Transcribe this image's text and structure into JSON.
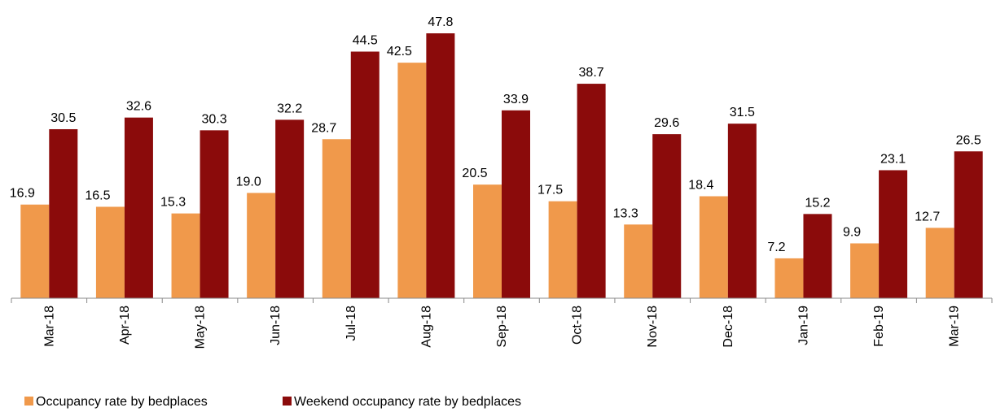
{
  "chart_data": {
    "type": "bar",
    "categories": [
      "Mar-18",
      "Apr-18",
      "May-18",
      "Jun-18",
      "Jul-18",
      "Aug-18",
      "Sep-18",
      "Oct-18",
      "Nov-18",
      "Dec-18",
      "Jan-19",
      "Feb-19",
      "Mar-19"
    ],
    "series": [
      {
        "name": "Occupancy rate by bedplaces",
        "color": "#f0994b",
        "values": [
          16.9,
          16.5,
          15.3,
          19.0,
          28.7,
          42.5,
          20.5,
          17.5,
          13.3,
          18.4,
          7.2,
          9.9,
          12.7
        ],
        "value_labels": [
          "16.9",
          "16.5",
          "15.3",
          "19.0",
          "28.7",
          "42.5",
          "20.5",
          "17.5",
          "13.3",
          "18.4",
          "7.2",
          "9.9",
          "12.7"
        ]
      },
      {
        "name": "Weekend occupancy rate by bedplaces",
        "color": "#8b0b0b",
        "values": [
          30.5,
          32.6,
          30.3,
          32.2,
          44.5,
          47.8,
          33.9,
          38.7,
          29.6,
          31.5,
          15.2,
          23.1,
          26.5
        ],
        "value_labels": [
          "30.5",
          "32.6",
          "30.3",
          "32.2",
          "44.5",
          "47.8",
          "33.9",
          "38.7",
          "29.6",
          "31.5",
          "15.2",
          "23.1",
          "26.5"
        ]
      }
    ],
    "legend": "bottom-left"
  }
}
